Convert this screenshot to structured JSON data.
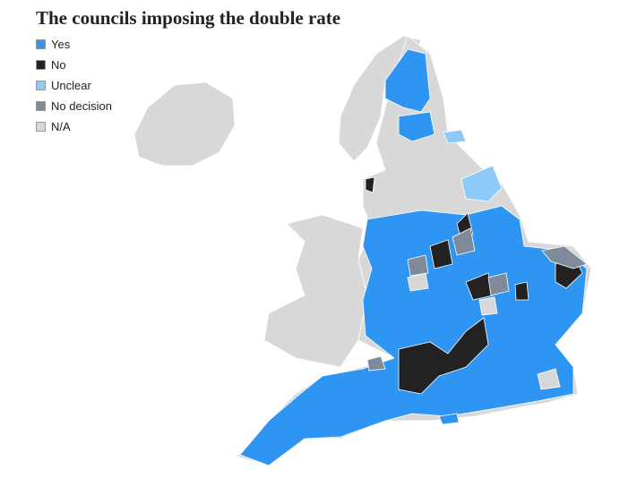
{
  "title": "The councils imposing the double rate",
  "legend": [
    {
      "label": "Yes",
      "color": "#2f95f2"
    },
    {
      "label": "No",
      "color": "#222222"
    },
    {
      "label": "Unclear",
      "color": "#8ecaf7"
    },
    {
      "label": "No decision",
      "color": "#7f8a9a"
    },
    {
      "label": "N/A",
      "color": "#d8d8d8"
    }
  ]
}
